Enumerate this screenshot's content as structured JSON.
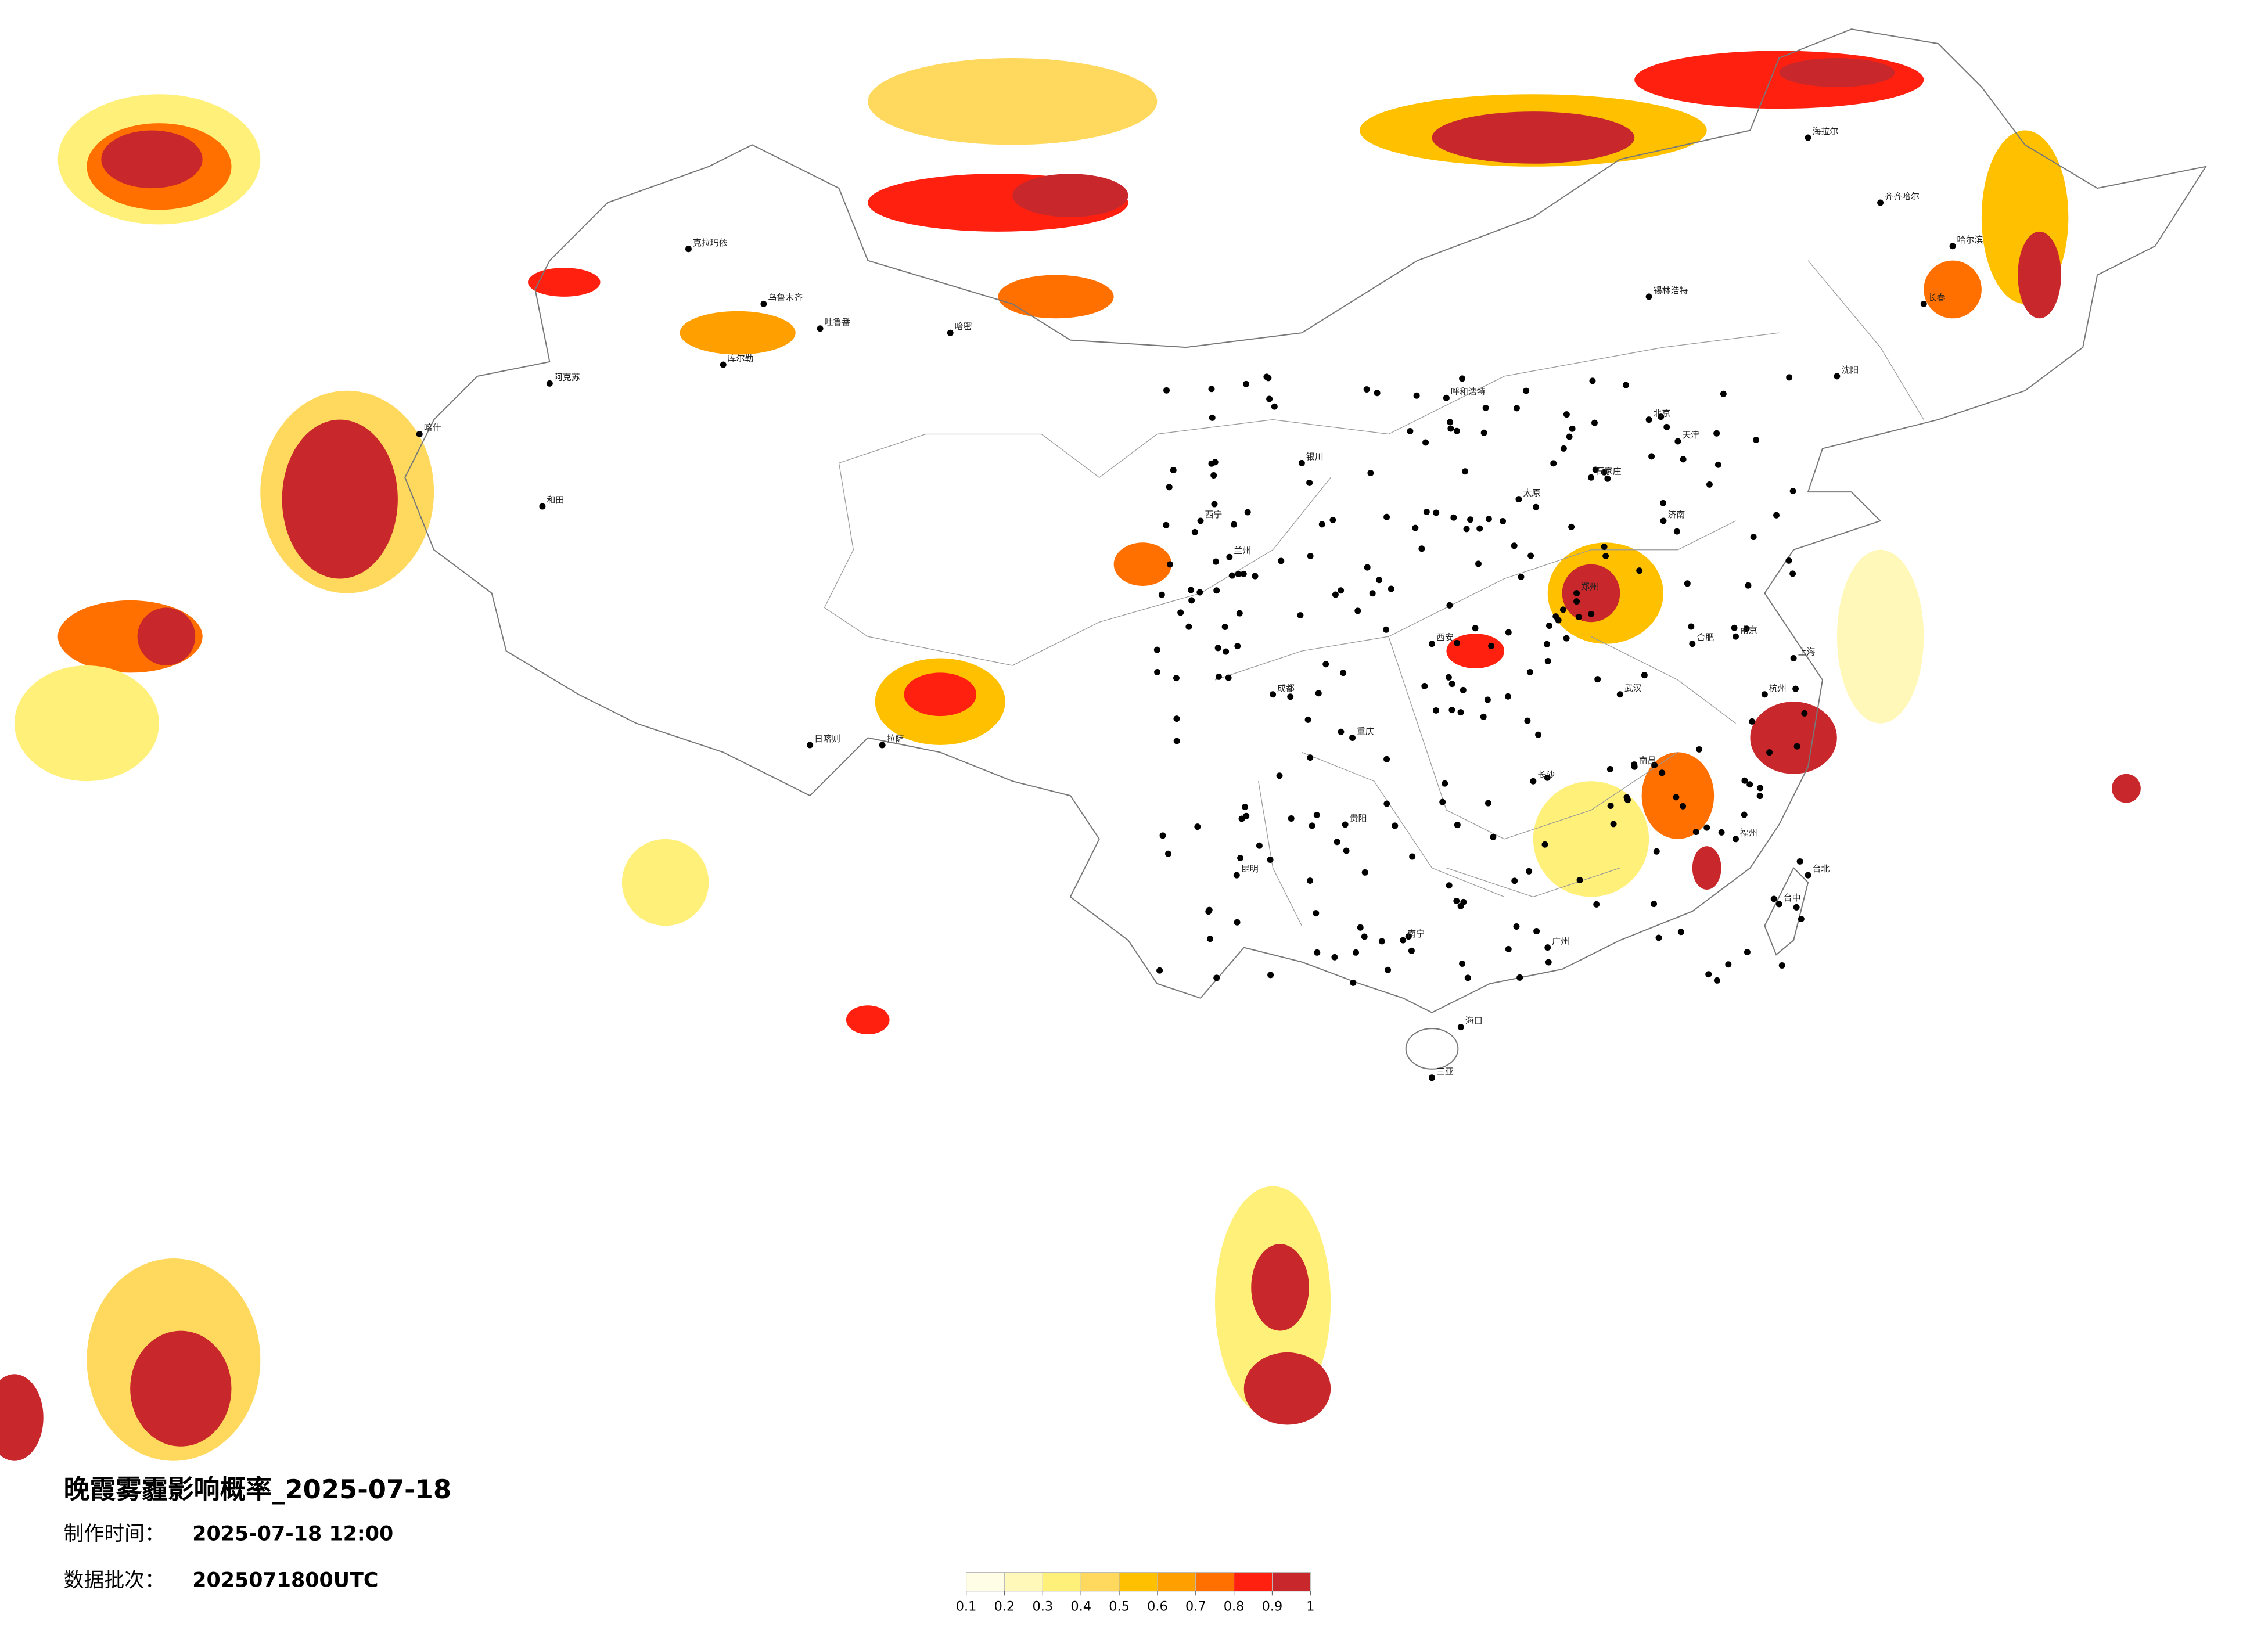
{
  "title": "晚霞雾霾影响概率_2025-07-18",
  "made_time_label": "制作时间：",
  "made_time": "2025-07-18 12:00",
  "batch_label": "数据批次：",
  "batch": "2025071800UTC",
  "legend": {
    "colors": [
      "#fffde6",
      "#fff8b8",
      "#fff07a",
      "#ffd95e",
      "#ffc000",
      "#ffa000",
      "#ff7000",
      "#ff2010",
      "#c8282c"
    ],
    "ticks": [
      0.1,
      0.2,
      0.3,
      0.4,
      0.5,
      0.6,
      0.7,
      0.8,
      0.9,
      1
    ]
  },
  "cities": [
    "克拉玛依",
    "乌鲁木齐",
    "吐鲁番",
    "哈密",
    "库尔勒",
    "阿克苏",
    "和田",
    "喀什",
    "拉萨",
    "日喀则",
    "西宁",
    "兰州",
    "银川",
    "呼和浩特",
    "北京",
    "天津",
    "石家庄",
    "太原",
    "济南",
    "郑州",
    "西安",
    "成都",
    "重庆",
    "武汉",
    "合肥",
    "南京",
    "上海",
    "杭州",
    "长沙",
    "南昌",
    "福州",
    "贵阳",
    "昆明",
    "南宁",
    "广州",
    "海口",
    "哈尔滨",
    "长春",
    "沈阳",
    "齐齐哈尔",
    "台北",
    "台中",
    "三亚",
    "海拉尔",
    "锡林浩特"
  ]
}
